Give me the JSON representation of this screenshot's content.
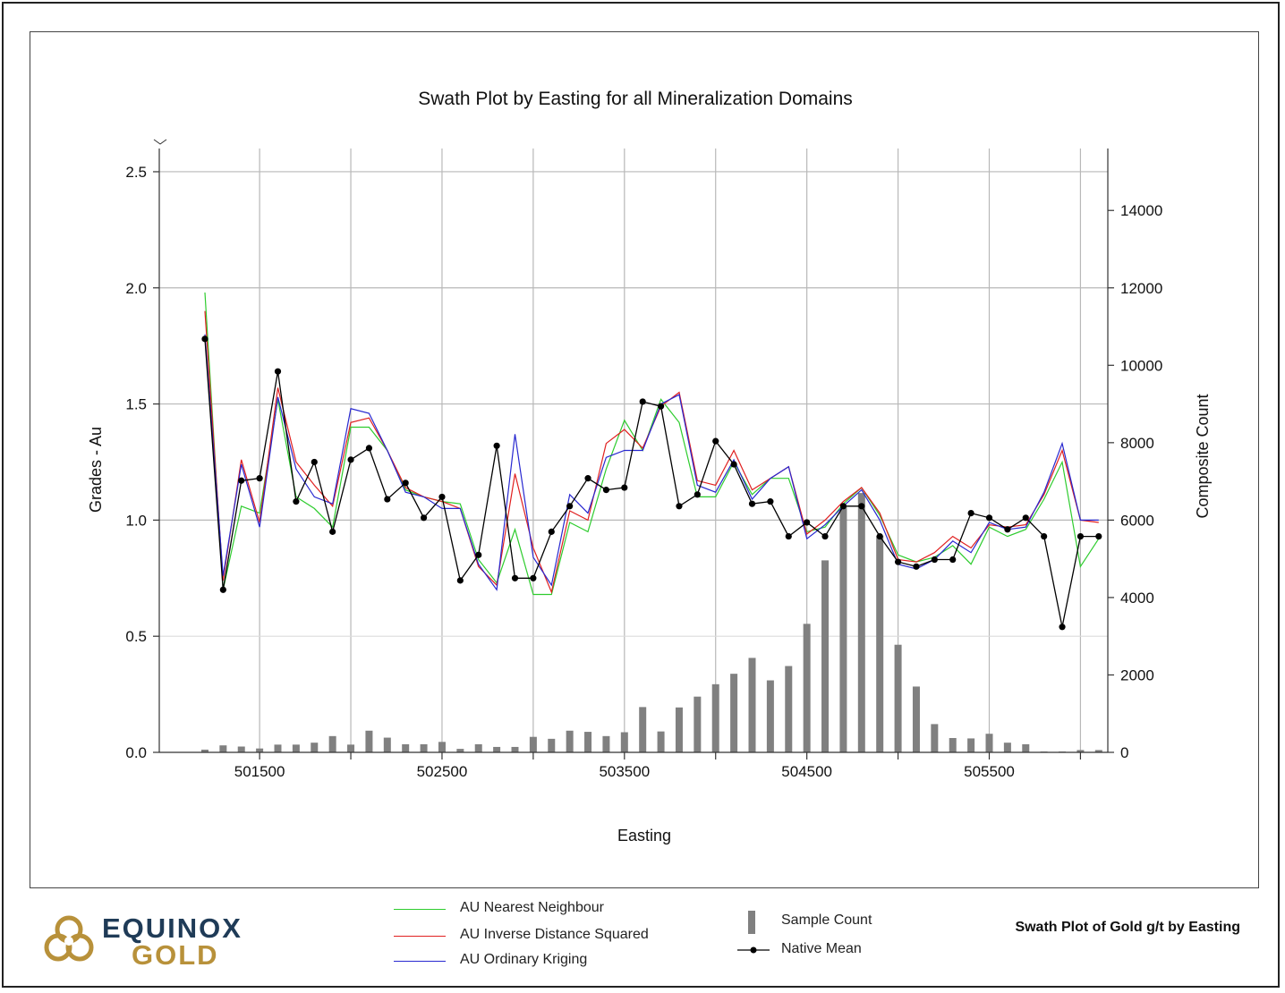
{
  "chart_data": {
    "type": "line",
    "title": "Swath Plot by Easting for all Mineralization Domains",
    "xlabel": "Easting",
    "ylabel": "Grades - Au",
    "y2label": "Composite Count",
    "xlim": [
      500950,
      506150
    ],
    "ylim": [
      0,
      2.6
    ],
    "y2lim": [
      0,
      15600
    ],
    "xticks": [
      501500,
      502500,
      503500,
      504500,
      505500
    ],
    "xtick_labels": [
      "501500",
      "502500",
      "503500",
      "504500",
      "505500"
    ],
    "xgrid": [
      501500,
      502000,
      502500,
      503000,
      503500,
      504000,
      504500,
      505000,
      505500,
      506000
    ],
    "yticks": [
      0.0,
      0.5,
      1.0,
      1.5,
      2.0,
      2.5
    ],
    "ytick_labels": [
      "0.0",
      "0.5",
      "1.0",
      "1.5",
      "2.0",
      "2.5"
    ],
    "y2ticks": [
      0,
      2000,
      4000,
      6000,
      8000,
      10000,
      12000,
      14000
    ],
    "y2tick_labels": [
      "0",
      "2000",
      "4000",
      "6000",
      "8000",
      "10000",
      "12000",
      "14000"
    ],
    "x": [
      501200,
      501300,
      501400,
      501500,
      501600,
      501700,
      501800,
      501900,
      502000,
      502100,
      502200,
      502300,
      502400,
      502500,
      502600,
      502700,
      502800,
      502900,
      503000,
      503100,
      503200,
      503300,
      503400,
      503500,
      503600,
      503700,
      503800,
      503900,
      504000,
      504100,
      504200,
      504300,
      504400,
      504500,
      504600,
      504700,
      504800,
      504900,
      505000,
      505100,
      505200,
      505300,
      505400,
      505500,
      505600,
      505700,
      505800,
      505900,
      506000,
      506100
    ],
    "series": [
      {
        "name": "AU Nearest Neighbour",
        "color": "#2ecc2e",
        "values": [
          1.98,
          0.7,
          1.06,
          1.03,
          1.52,
          1.1,
          1.05,
          0.97,
          1.4,
          1.4,
          1.3,
          1.13,
          1.1,
          1.08,
          1.07,
          0.83,
          0.73,
          0.96,
          0.68,
          0.68,
          0.99,
          0.95,
          1.22,
          1.43,
          1.3,
          1.52,
          1.42,
          1.1,
          1.1,
          1.25,
          1.11,
          1.18,
          1.18,
          0.95,
          0.97,
          1.07,
          1.14,
          1.02,
          0.85,
          0.82,
          0.84,
          0.89,
          0.81,
          0.97,
          0.93,
          0.96,
          1.09,
          1.25,
          0.8,
          0.92
        ]
      },
      {
        "name": "AU Inverse Distance Squared",
        "color": "#e02020",
        "values": [
          1.9,
          0.74,
          1.26,
          0.99,
          1.57,
          1.25,
          1.15,
          1.06,
          1.42,
          1.44,
          1.3,
          1.14,
          1.1,
          1.08,
          1.05,
          0.8,
          0.72,
          1.2,
          0.88,
          0.69,
          1.04,
          1.0,
          1.33,
          1.39,
          1.31,
          1.49,
          1.55,
          1.17,
          1.15,
          1.3,
          1.13,
          1.18,
          1.23,
          0.94,
          1.0,
          1.08,
          1.14,
          1.03,
          0.83,
          0.82,
          0.86,
          0.93,
          0.88,
          0.98,
          0.97,
          0.98,
          1.11,
          1.3,
          1.0,
          0.99
        ]
      },
      {
        "name": "AU Ordinary Kriging",
        "color": "#2828d0",
        "values": [
          1.8,
          0.76,
          1.24,
          0.97,
          1.53,
          1.22,
          1.1,
          1.07,
          1.48,
          1.46,
          1.3,
          1.12,
          1.1,
          1.05,
          1.05,
          0.81,
          0.7,
          1.37,
          0.84,
          0.72,
          1.11,
          1.03,
          1.27,
          1.3,
          1.3,
          1.5,
          1.54,
          1.15,
          1.12,
          1.26,
          1.09,
          1.18,
          1.23,
          0.92,
          0.98,
          1.06,
          1.13,
          1.0,
          0.81,
          0.79,
          0.83,
          0.91,
          0.86,
          0.99,
          0.96,
          0.97,
          1.12,
          1.33,
          1.0,
          1.0
        ]
      },
      {
        "name": "Native Mean",
        "color": "#000000",
        "values": [
          1.78,
          0.7,
          1.17,
          1.18,
          1.64,
          1.08,
          1.25,
          0.95,
          1.26,
          1.31,
          1.09,
          1.16,
          1.01,
          1.1,
          0.74,
          0.85,
          1.32,
          0.75,
          0.75,
          0.95,
          1.06,
          1.18,
          1.13,
          1.14,
          1.51,
          1.49,
          1.06,
          1.11,
          1.34,
          1.24,
          1.07,
          1.08,
          0.93,
          0.99,
          0.93,
          1.06,
          1.06,
          0.93,
          0.82,
          0.8,
          0.83,
          0.83,
          1.03,
          1.01,
          0.96,
          1.01,
          0.93,
          0.54,
          0.93,
          0.93
        ]
      }
    ],
    "sample_count": {
      "name": "Sample Count",
      "color": "#808080",
      "values": [
        70,
        180,
        150,
        100,
        200,
        200,
        250,
        420,
        200,
        560,
        380,
        210,
        210,
        270,
        90,
        210,
        140,
        140,
        400,
        350,
        560,
        530,
        420,
        520,
        1170,
        540,
        1160,
        1440,
        1760,
        2030,
        2440,
        1860,
        2230,
        3320,
        4960,
        6330,
        6700,
        5600,
        2780,
        1700,
        730,
        370,
        360,
        480,
        250,
        210,
        20,
        20,
        60,
        60
      ]
    }
  },
  "legend": {
    "items": [
      {
        "label": "AU Nearest Neighbour",
        "color": "#2ecc2e"
      },
      {
        "label": "AU Inverse Distance Squared",
        "color": "#e02020"
      },
      {
        "label": "AU Ordinary Kriging",
        "color": "#2828d0"
      }
    ],
    "sample_count_label": "Sample Count",
    "native_mean_label": "Native Mean"
  },
  "logo": {
    "line1": "EQUINOX",
    "line2": "GOLD"
  },
  "caption": "Swath Plot of Gold g/t by Easting"
}
